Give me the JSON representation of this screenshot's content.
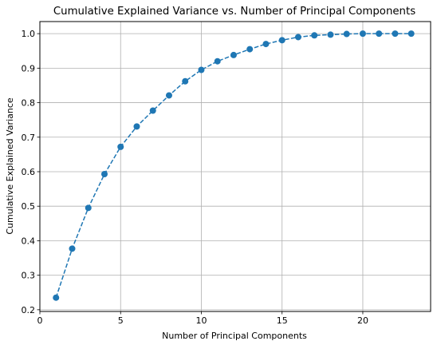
{
  "chart_data": {
    "type": "line",
    "title": "Cumulative Explained Variance vs. Number of Principal Components",
    "xlabel": "Number of Principal Components",
    "ylabel": "Cumulative Explained Variance",
    "xlim": [
      0,
      24.2
    ],
    "ylim": [
      0.195,
      1.035
    ],
    "x_ticks": [
      0,
      5,
      10,
      15,
      20
    ],
    "y_ticks": [
      0.2,
      0.3,
      0.4,
      0.5,
      0.6,
      0.7,
      0.8,
      0.9,
      1.0
    ],
    "x_tick_labels": [
      "0",
      "5",
      "10",
      "15",
      "20"
    ],
    "y_tick_labels": [
      "0.2",
      "0.3",
      "0.4",
      "0.5",
      "0.6",
      "0.7",
      "0.8",
      "0.9",
      "1.0"
    ],
    "grid": true,
    "line_style": "dashed",
    "marker": "circle",
    "series": [
      {
        "color": "#1f77b4",
        "x": [
          1,
          2,
          3,
          4,
          5,
          6,
          7,
          8,
          9,
          10,
          11,
          12,
          13,
          14,
          15,
          16,
          17,
          18,
          19,
          20,
          21,
          22,
          23
        ],
        "values": [
          0.235,
          0.377,
          0.495,
          0.593,
          0.672,
          0.731,
          0.777,
          0.821,
          0.862,
          0.895,
          0.92,
          0.938,
          0.955,
          0.97,
          0.981,
          0.99,
          0.995,
          0.997,
          0.999,
          1.0,
          1.0,
          1.0,
          1.0
        ]
      }
    ]
  }
}
